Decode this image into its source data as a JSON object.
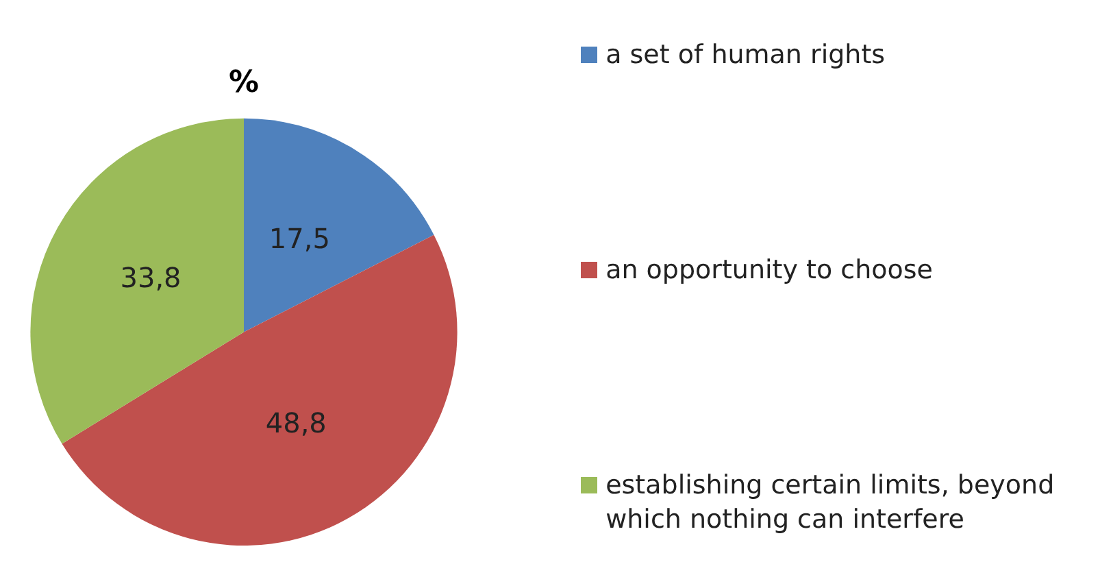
{
  "chart_data": {
    "type": "pie",
    "title": "%",
    "categories": [
      "a set of human rights",
      "an opportunity to choose",
      "establishing certain limits, beyond which nothing can interfere"
    ],
    "values": [
      17.5,
      48.8,
      33.8
    ],
    "colors": [
      "#4f81bd",
      "#c0504d",
      "#9bbb59"
    ],
    "value_labels": [
      "17,5",
      "48,8",
      "33,8"
    ],
    "legend": "right"
  }
}
